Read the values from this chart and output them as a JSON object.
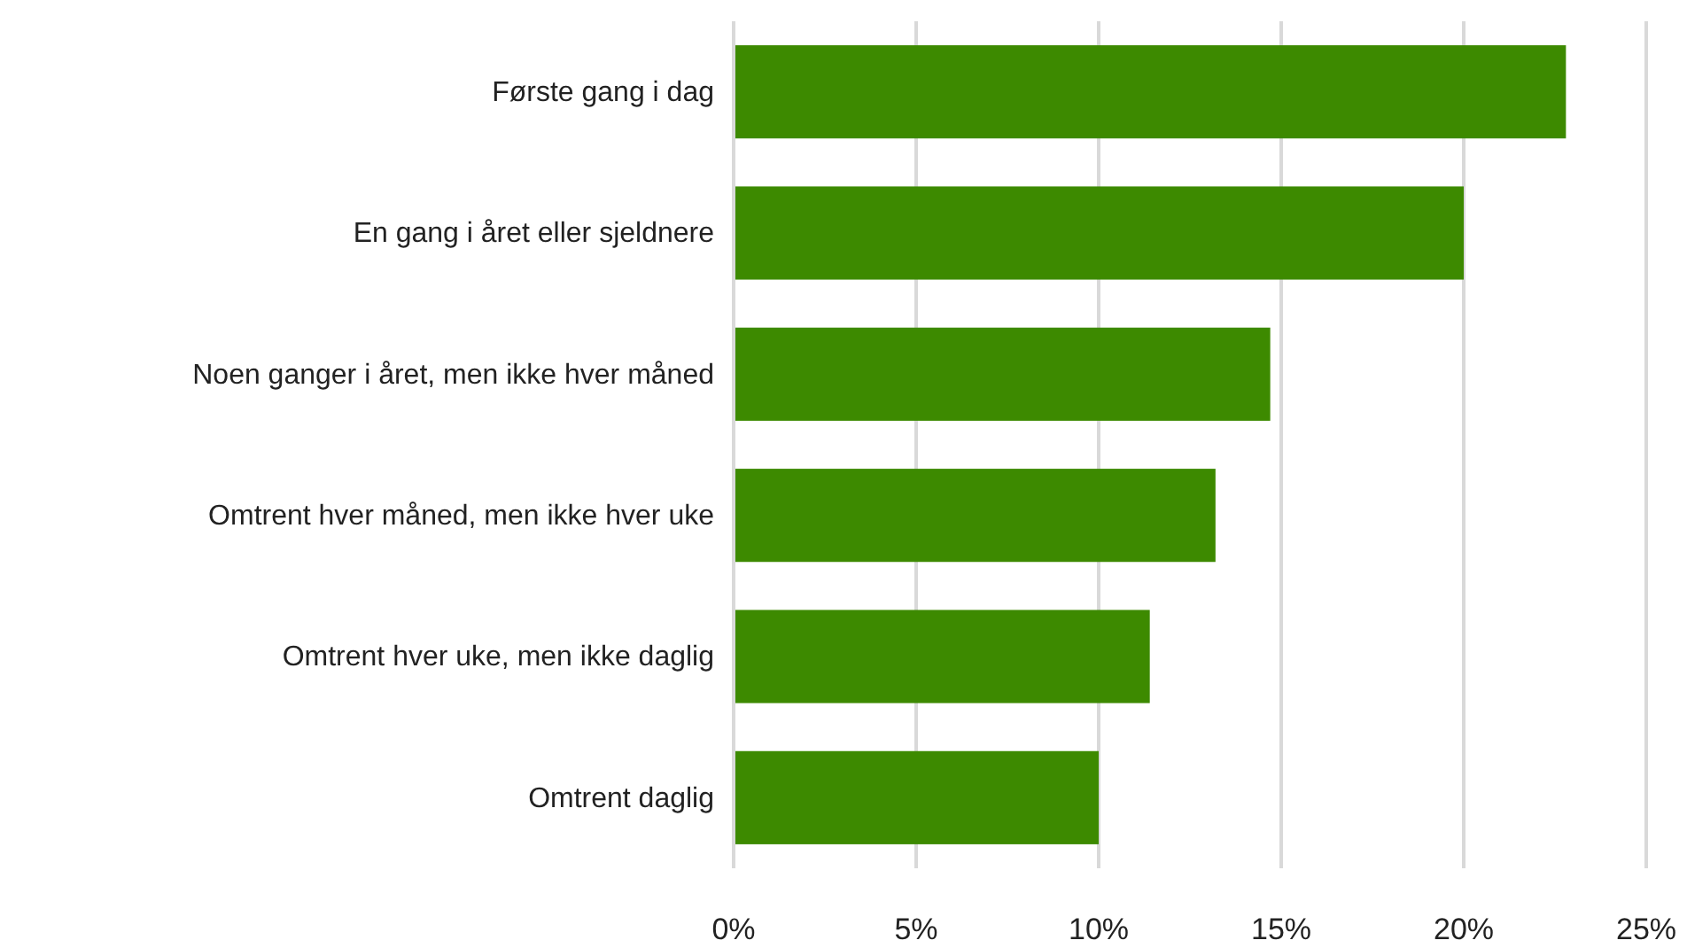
{
  "chart_data": {
    "type": "bar",
    "orientation": "horizontal",
    "categories": [
      "Første gang i dag",
      "En gang i året eller sjeldnere",
      "Noen ganger i året, men ikke hver måned",
      "Omtrent hver måned, men ikke hver uke",
      "Omtrent hver uke, men ikke daglig",
      "Omtrent daglig"
    ],
    "values": [
      22.8,
      20.0,
      14.7,
      13.2,
      11.4,
      10.0
    ],
    "color": "#3d8a00",
    "xlim": [
      0,
      25
    ],
    "xticks": [
      {
        "value": 0,
        "label": "0%"
      },
      {
        "value": 5,
        "label": "5%"
      },
      {
        "value": 10,
        "label": "10%"
      },
      {
        "value": 15,
        "label": "15%"
      },
      {
        "value": 20,
        "label": "20%"
      },
      {
        "value": 25,
        "label": "25%"
      }
    ],
    "grid": "x"
  }
}
